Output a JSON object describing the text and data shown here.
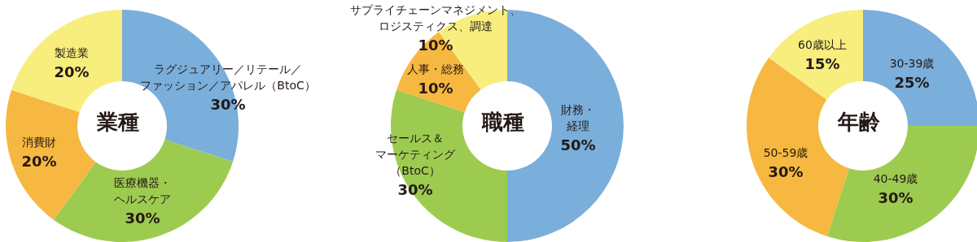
{
  "chart_data": [
    {
      "type": "donut",
      "title": "業種",
      "categories": [
        "ラグジュアリー／リテール／ファッション／アパレル（BtoC）",
        "医療機器・ヘルスケア",
        "消費財",
        "製造業"
      ],
      "values": [
        30,
        30,
        20,
        20
      ],
      "value_labels": [
        "30%",
        "30%",
        "20%",
        "20%"
      ],
      "colors": [
        "#7aaedb",
        "#9dcb50",
        "#f6b840",
        "#f7ee7e"
      ]
    },
    {
      "type": "donut",
      "title": "職種",
      "categories": [
        "財務・経理",
        "セールス＆マーケティング（BtoC）",
        "人事・総務",
        "サプライチェーンマネジメント、ロジスティクス、調達"
      ],
      "values": [
        50,
        30,
        10,
        10
      ],
      "value_labels": [
        "50%",
        "30%",
        "10%",
        "10%"
      ],
      "colors": [
        "#7aaedb",
        "#9dcb50",
        "#f6b840",
        "#f7ee7e"
      ]
    },
    {
      "type": "donut",
      "title": "年齢",
      "categories": [
        "30-39歳",
        "40-49歳",
        "50-59歳",
        "60歳以上"
      ],
      "values": [
        25,
        30,
        30,
        15
      ],
      "value_labels": [
        "25%",
        "30%",
        "30%",
        "15%"
      ],
      "colors": [
        "#7aaedb",
        "#9dcb50",
        "#f6b840",
        "#f7ee7e"
      ]
    }
  ]
}
